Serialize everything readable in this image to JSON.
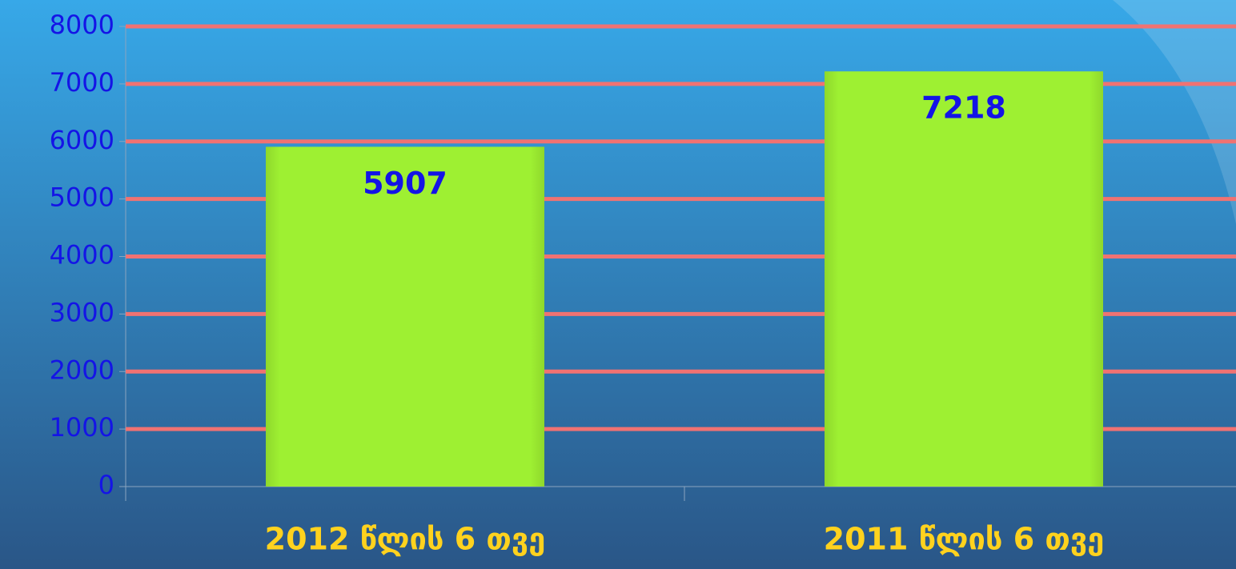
{
  "chart_data": {
    "type": "bar",
    "categories": [
      "2012 წლის 6 თვე",
      "2011 წლის 6 თვე"
    ],
    "values": [
      5907,
      7218
    ],
    "color": "#9ef032",
    "grid_color": "#f07272",
    "ylim": [
      0,
      8000
    ],
    "yticks": [
      0,
      1000,
      2000,
      3000,
      4000,
      5000,
      6000,
      7000,
      8000
    ],
    "grid": true
  }
}
